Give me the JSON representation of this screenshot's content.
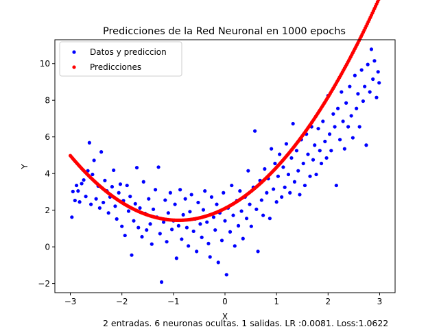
{
  "chart_data": {
    "type": "scatter",
    "title": "Predicciones de la Red Neuronal en 1000 epochs",
    "xlabel": "X",
    "ylabel": "Y",
    "xlim": [
      -3.3,
      3.3
    ],
    "ylim": [
      -2.5,
      11.3
    ],
    "xticks": [
      -3,
      -2,
      -1,
      0,
      1,
      2,
      3
    ],
    "xtick_labels": [
      "−3",
      "−2",
      "−1",
      "0",
      "1",
      "2",
      "3"
    ],
    "yticks": [
      -2,
      0,
      2,
      4,
      6,
      8,
      10
    ],
    "ytick_labels": [
      "−2",
      "0",
      "2",
      "4",
      "6",
      "8",
      "10"
    ],
    "grid": false,
    "legend_position": "upper-left",
    "footer": "2 entradas. 6 neuronas ocultas. 1 salidas. LR :0.0081. Loss:1.0622",
    "series": [
      {
        "name": "Datos y prediccion",
        "color": "#0000ff",
        "marker": "dot",
        "points": [
          [
            -2.97,
            1.62
          ],
          [
            -2.95,
            3.02
          ],
          [
            -2.91,
            2.53
          ],
          [
            -2.88,
            3.35
          ],
          [
            -2.85,
            3.05
          ],
          [
            -2.82,
            2.45
          ],
          [
            -2.78,
            3.45
          ],
          [
            -2.74,
            3.65
          ],
          [
            -2.7,
            2.75
          ],
          [
            -2.66,
            4.15
          ],
          [
            -2.63,
            5.68
          ],
          [
            -2.6,
            2.32
          ],
          [
            -2.57,
            3.95
          ],
          [
            -2.54,
            4.72
          ],
          [
            -2.5,
            2.62
          ],
          [
            -2.46,
            3.32
          ],
          [
            -2.43,
            2.12
          ],
          [
            -2.4,
            5.18
          ],
          [
            -2.36,
            2.42
          ],
          [
            -2.33,
            3.62
          ],
          [
            -2.29,
            3.05
          ],
          [
            -2.26,
            1.85
          ],
          [
            -2.23,
            2.72
          ],
          [
            -2.19,
            3.28
          ],
          [
            -2.16,
            4.18
          ],
          [
            -2.13,
            2.22
          ],
          [
            -2.1,
            1.52
          ],
          [
            -2.06,
            2.95
          ],
          [
            -2.03,
            3.42
          ],
          [
            -2.0,
            1.12
          ],
          [
            -1.97,
            2.52
          ],
          [
            -1.94,
            0.62
          ],
          [
            -1.9,
            3.35
          ],
          [
            -1.87,
            1.95
          ],
          [
            -1.84,
            2.75
          ],
          [
            -1.81,
            -0.45
          ],
          [
            -1.77,
            1.42
          ],
          [
            -1.74,
            2.35
          ],
          [
            -1.71,
            4.32
          ],
          [
            -1.68,
            1.05
          ],
          [
            -1.65,
            2.12
          ],
          [
            -1.61,
            0.55
          ],
          [
            -1.58,
            3.55
          ],
          [
            -1.55,
            1.82
          ],
          [
            -1.52,
            0.92
          ],
          [
            -1.48,
            2.62
          ],
          [
            -1.45,
            1.25
          ],
          [
            -1.42,
            0.15
          ],
          [
            -1.39,
            2.05
          ],
          [
            -1.35,
            3.12
          ],
          [
            -1.32,
            1.62
          ],
          [
            -1.29,
            4.35
          ],
          [
            -1.26,
            0.72
          ],
          [
            -1.23,
            -1.92
          ],
          [
            -1.19,
            1.35
          ],
          [
            -1.16,
            2.55
          ],
          [
            -1.13,
            0.28
          ],
          [
            -1.1,
            1.85
          ],
          [
            -1.06,
            2.95
          ],
          [
            -1.03,
            0.95
          ],
          [
            -1.0,
            1.42
          ],
          [
            -0.97,
            2.32
          ],
          [
            -0.94,
            -0.62
          ],
          [
            -0.9,
            1.15
          ],
          [
            -0.87,
            3.12
          ],
          [
            -0.84,
            0.42
          ],
          [
            -0.81,
            1.75
          ],
          [
            -0.77,
            2.62
          ],
          [
            -0.74,
            1.05
          ],
          [
            -0.71,
            0.05
          ],
          [
            -0.68,
            1.92
          ],
          [
            -0.65,
            2.85
          ],
          [
            -0.61,
            0.85
          ],
          [
            -0.58,
            1.52
          ],
          [
            -0.55,
            -0.25
          ],
          [
            -0.52,
            2.42
          ],
          [
            -0.48,
            1.25
          ],
          [
            -0.45,
            0.52
          ],
          [
            -0.42,
            2.02
          ],
          [
            -0.39,
            3.05
          ],
          [
            -0.35,
            1.35
          ],
          [
            -0.32,
            0.18
          ],
          [
            -0.29,
            -0.55
          ],
          [
            -0.26,
            2.72
          ],
          [
            -0.22,
            1.62
          ],
          [
            -0.19,
            0.92
          ],
          [
            -0.16,
            2.32
          ],
          [
            -0.13,
            -0.85
          ],
          [
            -0.1,
            1.85
          ],
          [
            -0.06,
            0.35
          ],
          [
            -0.03,
            2.95
          ],
          [
            0.0,
            1.42
          ],
          [
            0.03,
            -1.52
          ],
          [
            0.06,
            2.12
          ],
          [
            0.1,
            0.82
          ],
          [
            0.13,
            3.35
          ],
          [
            0.16,
            1.72
          ],
          [
            0.19,
            0.05
          ],
          [
            0.23,
            2.52
          ],
          [
            0.26,
            1.15
          ],
          [
            0.29,
            3.05
          ],
          [
            0.32,
            1.95
          ],
          [
            0.35,
            0.45
          ],
          [
            0.39,
            2.72
          ],
          [
            0.42,
            1.55
          ],
          [
            0.45,
            4.15
          ],
          [
            0.48,
            2.32
          ],
          [
            0.51,
            1.12
          ],
          [
            0.55,
            3.25
          ],
          [
            0.58,
            6.32
          ],
          [
            0.61,
            2.05
          ],
          [
            0.64,
            -0.25
          ],
          [
            0.68,
            3.62
          ],
          [
            0.71,
            2.55
          ],
          [
            0.74,
            1.72
          ],
          [
            0.77,
            4.25
          ],
          [
            0.81,
            2.95
          ],
          [
            0.84,
            3.72
          ],
          [
            0.87,
            1.55
          ],
          [
            0.9,
            5.35
          ],
          [
            0.94,
            3.15
          ],
          [
            0.97,
            4.55
          ],
          [
            1.0,
            2.45
          ],
          [
            1.03,
            3.85
          ],
          [
            1.06,
            5.05
          ],
          [
            1.1,
            2.72
          ],
          [
            1.13,
            4.35
          ],
          [
            1.16,
            3.25
          ],
          [
            1.19,
            5.62
          ],
          [
            1.23,
            3.95
          ],
          [
            1.26,
            2.95
          ],
          [
            1.29,
            4.85
          ],
          [
            1.32,
            6.72
          ],
          [
            1.35,
            3.55
          ],
          [
            1.39,
            5.25
          ],
          [
            1.42,
            4.15
          ],
          [
            1.45,
            2.85
          ],
          [
            1.48,
            5.85
          ],
          [
            1.52,
            4.55
          ],
          [
            1.55,
            3.35
          ],
          [
            1.58,
            6.15
          ],
          [
            1.61,
            5.05
          ],
          [
            1.65,
            3.85
          ],
          [
            1.68,
            6.55
          ],
          [
            1.71,
            4.75
          ],
          [
            1.74,
            5.55
          ],
          [
            1.77,
            3.95
          ],
          [
            1.81,
            6.45
          ],
          [
            1.84,
            5.25
          ],
          [
            1.87,
            4.55
          ],
          [
            1.9,
            6.85
          ],
          [
            1.94,
            5.75
          ],
          [
            1.97,
            4.85
          ],
          [
            2.0,
            8.25
          ],
          [
            2.03,
            6.15
          ],
          [
            2.06,
            5.25
          ],
          [
            2.1,
            7.25
          ],
          [
            2.13,
            6.55
          ],
          [
            2.16,
            3.35
          ],
          [
            2.19,
            7.55
          ],
          [
            2.23,
            5.85
          ],
          [
            2.26,
            8.45
          ],
          [
            2.29,
            6.85
          ],
          [
            2.32,
            5.35
          ],
          [
            2.35,
            7.85
          ],
          [
            2.39,
            6.55
          ],
          [
            2.42,
            8.75
          ],
          [
            2.45,
            7.15
          ],
          [
            2.48,
            5.95
          ],
          [
            2.52,
            9.35
          ],
          [
            2.55,
            7.55
          ],
          [
            2.58,
            8.35
          ],
          [
            2.61,
            6.55
          ],
          [
            2.65,
            9.65
          ],
          [
            2.68,
            7.95
          ],
          [
            2.71,
            8.75
          ],
          [
            2.74,
            5.55
          ],
          [
            2.77,
            9.95
          ],
          [
            2.81,
            8.45
          ],
          [
            2.84,
            10.78
          ],
          [
            2.87,
            9.15
          ],
          [
            2.9,
            10.15
          ],
          [
            2.94,
            8.15
          ],
          [
            2.97,
            9.55
          ],
          [
            2.99,
            8.95
          ]
        ]
      },
      {
        "name": "Predicciones",
        "color": "#ff0000",
        "marker": "dot",
        "curve": {
          "from": -3.0,
          "to": 3.0,
          "a": 0.8,
          "vertex_x": -0.9,
          "vertex_y": 1.45
        }
      }
    ]
  }
}
